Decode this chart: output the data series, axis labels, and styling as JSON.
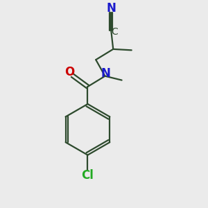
{
  "background_color": "#ebebeb",
  "bond_color": "#2d4a2d",
  "atom_colors": {
    "N": "#1a1acc",
    "O": "#cc0000",
    "Cl": "#22aa22",
    "C": "#2d4a2d"
  },
  "figsize": [
    3.0,
    3.0
  ],
  "dpi": 100,
  "xlim": [
    0,
    10
  ],
  "ylim": [
    0,
    10
  ]
}
